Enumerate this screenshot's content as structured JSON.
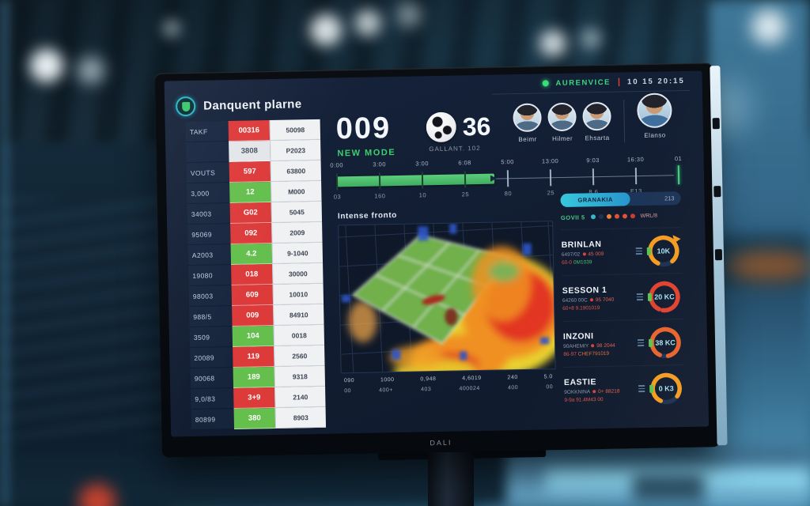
{
  "header": {
    "title": "Danquent plarne",
    "live": {
      "label": "AURENVICE",
      "separator": "|",
      "time": "10 15 20:15"
    }
  },
  "scoreboard": {
    "home": {
      "value": "009",
      "label": "NEW MODE"
    },
    "away": {
      "value": "36",
      "label": "GALLANT. 102"
    }
  },
  "players": [
    {
      "name": "Beimr",
      "featured": false
    },
    {
      "name": "Hilmer",
      "featured": false
    },
    {
      "name": "Ehsarta",
      "featured": false
    },
    {
      "name": "Elanso",
      "featured": true
    }
  ],
  "timeline": {
    "top_labels": [
      "0:00",
      "3:00",
      "3:00",
      "6:08",
      "5:00",
      "13:00",
      "9:03",
      "16:30",
      "01"
    ],
    "bottom_labels": [
      "03",
      "160",
      "10",
      "25",
      "80",
      "25",
      "8.6",
      "E13",
      ""
    ],
    "progress_pct": 46
  },
  "stats_table": {
    "rows": [
      {
        "label": "TAKF",
        "value": "00316",
        "status": "red",
        "second": "50098"
      },
      {
        "label": "",
        "value": "3808",
        "status": "neutral",
        "second": "P2023"
      },
      {
        "label": "VOUTS",
        "value": "597",
        "status": "red",
        "second": "63800"
      },
      {
        "label": "3,000",
        "value": "12",
        "status": "green",
        "second": "M000"
      },
      {
        "label": "34003",
        "value": "G02",
        "status": "red",
        "second": "5045"
      },
      {
        "label": "95069",
        "value": "092",
        "status": "red",
        "second": "2009"
      },
      {
        "label": "A2003",
        "value": "4.2",
        "status": "green",
        "second": "9-1040"
      },
      {
        "label": "19080",
        "value": "018",
        "status": "red",
        "second": "30000"
      },
      {
        "label": "98003",
        "value": "609",
        "status": "red",
        "second": "10010"
      },
      {
        "label": "988/5",
        "value": "009",
        "status": "red",
        "second": "84910"
      },
      {
        "label": "3509",
        "value": "104",
        "status": "green",
        "second": "0018"
      },
      {
        "label": "20089",
        "value": "119",
        "status": "red",
        "second": "2560"
      },
      {
        "label": "90068",
        "value": "189",
        "status": "green",
        "second": "9318"
      },
      {
        "label": "9,0/83",
        "value": "3+9",
        "status": "red",
        "second": "2140"
      },
      {
        "label": "80899",
        "value": "380",
        "status": "green",
        "second": "8903"
      }
    ]
  },
  "heatmap": {
    "title": "Intense fronto",
    "axis_row1": [
      "090",
      "1000",
      "0,948",
      "4,6019",
      "240",
      "5.0"
    ],
    "axis_row2": [
      "00",
      "400+",
      "403",
      "400024",
      "400",
      "00"
    ]
  },
  "right_panel": {
    "pill": {
      "label": "GRANAKIA",
      "value": "213",
      "pct": 58
    },
    "dots": {
      "label": "GOVII 5",
      "colors": [
        "#35b8c8",
        "#20334d",
        "#f08233",
        "#e25038",
        "#e25038",
        "#cf3b30"
      ],
      "suffix": "WRL/8"
    },
    "stats": [
      {
        "title": "BRINLAN",
        "line1": "6497/02",
        "dot_value": "45 009",
        "line2_parts": [
          {
            "text": "60-0 ",
            "color": "#e05548"
          },
          {
            "text": "0M1039",
            "color": "#4ec36a"
          }
        ],
        "value": "10K",
        "gauge_color": "#f49b20",
        "gauge_pct": 82,
        "pointer": true
      },
      {
        "title": "SESSON 1",
        "line1": "64260 00C",
        "dot_value": "95 7040",
        "line2_parts": [
          {
            "text": "60+8 9.1901019",
            "color": "#e05548"
          }
        ],
        "value": "20 KC",
        "gauge_color": "#e2412e",
        "gauge_pct": 95,
        "pointer": false
      },
      {
        "title": "INZONI",
        "line1": "90AHEMIY",
        "dot_value": "98 2044",
        "line2_parts": [
          {
            "text": "86-97 ",
            "color": "#e05548"
          },
          {
            "text": "CHEF791019",
            "color": "#e07040"
          }
        ],
        "value": "38 KC",
        "gauge_color": "#e8632b",
        "gauge_pct": 90,
        "pointer": false
      },
      {
        "title": "EASTIE",
        "line1": "9OKKNINA",
        "dot_value": "0+ 88218",
        "line2_parts": [
          {
            "text": "9-9a 91.4M43 00",
            "color": "#e05548"
          }
        ],
        "value": "0 K3",
        "gauge_color": "#f49b20",
        "gauge_pct": 78,
        "pointer": false
      }
    ]
  },
  "monitor": {
    "brand": "DALI"
  }
}
